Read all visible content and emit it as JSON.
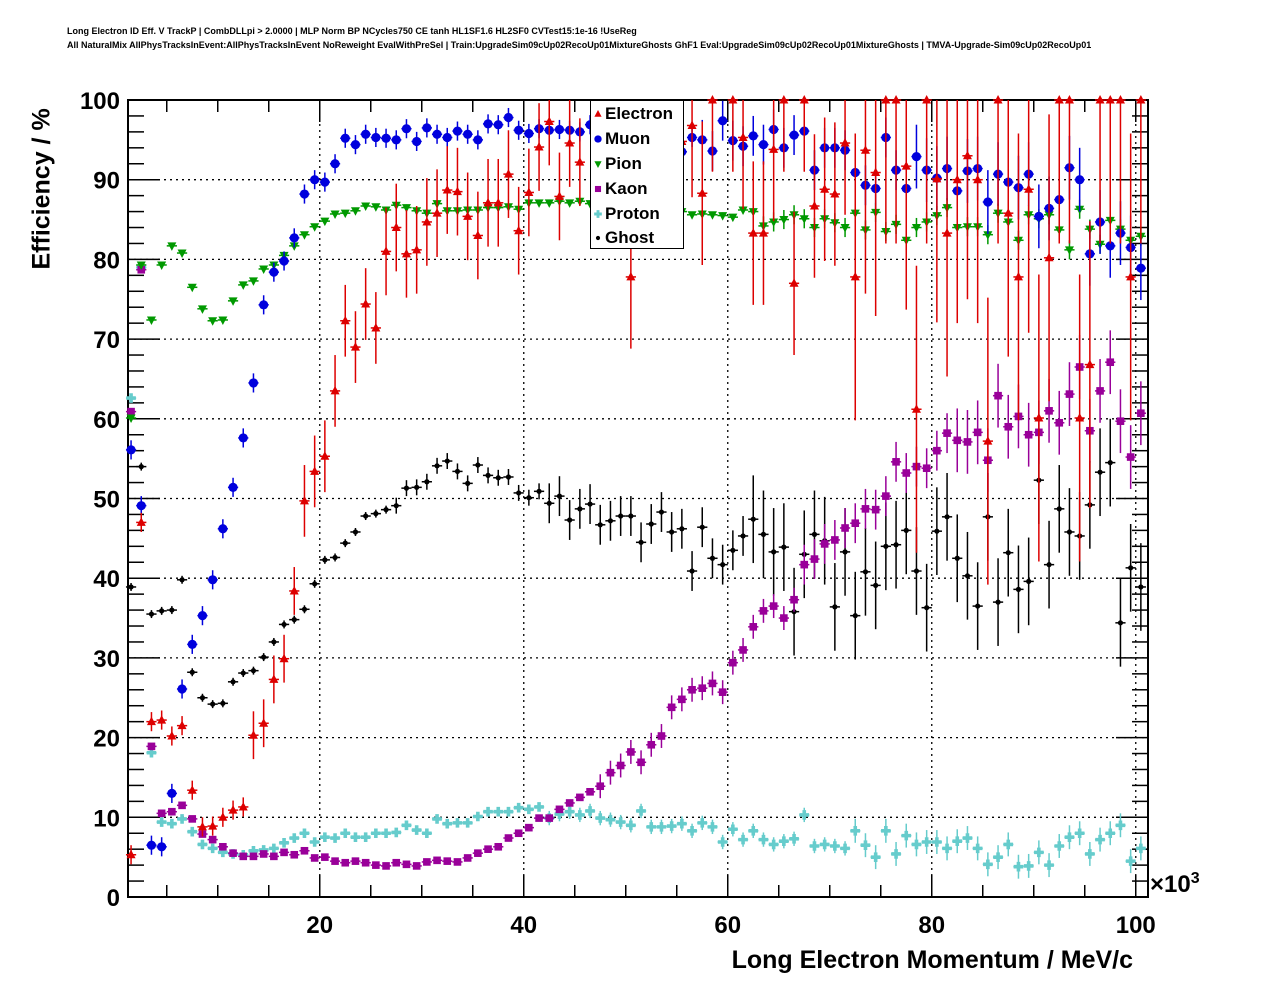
{
  "header": {
    "title_line1": "Long Electron ID Eff. V TrackP | CombDLLpi > 2.0000 | MLP Norm BP NCycles750 CE tanh HL1SF1.6 HL2SF0 CVTest15:1e-16 !UseReg",
    "title_line2": "All NaturalMix AllPhysTracksInEvent:AllPhysTracksInEvent NoReweight EvalWithPreSel | Train:UpgradeSim09cUp02RecoUp01MixtureGhosts GhF1 Eval:UpgradeSim09cUp02RecoUp01MixtureGhosts | TMVA-Upgrade-Sim09cUp02RecoUp01"
  },
  "chart_data": {
    "type": "scatter",
    "xlabel": "Long Electron Momentum / MeV/c",
    "x_multiplier": "×10",
    "x_multiplier_exp": "3",
    "ylabel": "Efficiency / %",
    "xlim": [
      1.2,
      101.2
    ],
    "ylim": [
      0,
      100
    ],
    "x_ticks": [
      "20",
      "40",
      "60",
      "80",
      "100"
    ],
    "x_tick_values": [
      20,
      40,
      60,
      80,
      100
    ],
    "y_ticks": [
      "0",
      "10",
      "20",
      "30",
      "40",
      "50",
      "60",
      "70",
      "80",
      "90",
      "100"
    ],
    "y_tick_values": [
      0,
      10,
      20,
      30,
      40,
      50,
      60,
      70,
      80,
      90,
      100
    ],
    "grid": true,
    "legend_position": "top-center",
    "bin_center_start": 1.5,
    "bin_width": 1,
    "series": [
      {
        "name": "Electron",
        "color": "#dd0000",
        "marker": "triangle-up",
        "values": [
          5.3,
          47,
          22,
          22.2,
          20.2,
          21.5,
          13.4,
          8.8,
          8.9,
          10,
          10.9,
          11.3,
          20.3,
          21.8,
          27.3,
          29.9,
          38.4,
          49.7,
          53.4,
          55.3,
          63.5,
          72.3,
          69,
          74.4,
          71.4,
          81,
          84,
          80.7,
          81.2,
          84.7,
          85.8,
          88.7,
          88.5,
          85.4,
          83,
          87.1,
          87.1,
          90.7,
          83.6,
          88.4,
          94.1,
          97.3,
          87.9,
          94.6,
          92.2,
          null,
          null,
          null,
          null,
          77.8,
          null,
          null,
          null,
          null,
          94.8,
          96.8,
          88.3,
          100,
          null,
          100,
          95.3,
          83.3,
          83.3,
          93.8,
          100,
          77,
          100,
          86.7,
          88.8,
          88.2,
          94.6,
          77.8,
          93.7,
          90.9,
          100,
          100,
          91.7,
          61.2,
          100,
          90.1,
          83.3,
          90,
          93,
          90,
          57.2,
          100,
          85.8,
          77.8,
          88.8,
          60.1,
          80.2,
          100,
          100,
          60.1,
          66.8,
          100,
          100,
          100,
          77.8,
          100
        ],
        "yerr_by_range": [
          [
            0,
            11,
            1.2
          ],
          [
            12,
            16,
            3
          ],
          [
            17,
            24,
            4.5
          ],
          [
            25,
            48,
            5.5
          ],
          [
            49,
            70,
            9
          ],
          [
            71,
            101,
            18
          ]
        ]
      },
      {
        "name": "Muon",
        "color": "#0000dd",
        "marker": "circle",
        "values": [
          56.1,
          49.1,
          6.5,
          6.3,
          13,
          26.1,
          31.7,
          35.3,
          39.8,
          46.2,
          51.4,
          57.6,
          64.5,
          74.3,
          78.4,
          79.8,
          82.7,
          88.2,
          90,
          89.7,
          92,
          95.2,
          94.4,
          95.7,
          95.3,
          95.2,
          95,
          96.4,
          94.8,
          96.5,
          95.7,
          95.3,
          96.1,
          95.7,
          95,
          97,
          96.9,
          97.8,
          96.2,
          95.8,
          96.4,
          96.2,
          96.3,
          96.2,
          96,
          96.9,
          null,
          null,
          null,
          null,
          null,
          null,
          null,
          null,
          93.5,
          95.3,
          95,
          93.6,
          97.4,
          94.9,
          94.2,
          95.5,
          94.4,
          96.3,
          94,
          95.6,
          96.1,
          91.2,
          94,
          94,
          93.7,
          90.9,
          89.3,
          88.9,
          95.3,
          91.2,
          88.9,
          92.9,
          91.2,
          90.2,
          91.4,
          88.6,
          91.1,
          91.4,
          87.2,
          90.7,
          89.7,
          89,
          90.7,
          85.4,
          86.4,
          87.5,
          91.5,
          90,
          80.7,
          84.7,
          81.7,
          83.3,
          81.5,
          78.9
        ],
        "yerr_by_range": [
          [
            0,
            20,
            1.2
          ],
          [
            21,
            55,
            1.2
          ],
          [
            56,
            75,
            2.5
          ],
          [
            76,
            101,
            4
          ]
        ]
      },
      {
        "name": "Pion",
        "color": "#009900",
        "marker": "triangle-down",
        "values": [
          60.1,
          79.3,
          72.4,
          79.3,
          81.7,
          80.8,
          76.5,
          73.8,
          72.3,
          72.4,
          74.8,
          76.8,
          77.3,
          78.8,
          79.3,
          80.5,
          81.7,
          83.1,
          84.1,
          84.8,
          85.7,
          85.8,
          86.1,
          86.7,
          86.6,
          86.2,
          86.8,
          86.5,
          86.1,
          85.8,
          87,
          86.1,
          86.1,
          86.2,
          86.2,
          86.5,
          86.5,
          86.6,
          86.3,
          87.1,
          87.1,
          87.1,
          87.3,
          87.1,
          87.3,
          87,
          null,
          null,
          null,
          null,
          null,
          null,
          null,
          null,
          86,
          85.6,
          85.7,
          85.6,
          85.5,
          85.3,
          86.2,
          86,
          84.2,
          84.7,
          85,
          85.6,
          85.1,
          84,
          85.1,
          84.6,
          84,
          85.8,
          83.7,
          85.9,
          83.5,
          84.4,
          82.4,
          84,
          84.7,
          85.5,
          86.5,
          84,
          84.1,
          84.1,
          83.1,
          85.8,
          84.7,
          82.4,
          85.6,
          85.1,
          85.6,
          83.7,
          81.2,
          86.3,
          83.8,
          81.9,
          84.9,
          83.8,
          82.4,
          82.9
        ],
        "yerr_by_range": [
          [
            0,
            60,
            0.4
          ],
          [
            61,
            101,
            1.2
          ]
        ]
      },
      {
        "name": "Kaon",
        "color": "#990099",
        "marker": "square",
        "values": [
          60.9,
          78.7,
          18.9,
          10.5,
          10.7,
          11.5,
          9.8,
          7.9,
          7.2,
          6.3,
          5.5,
          5.1,
          5.1,
          5.4,
          5.1,
          5.6,
          5.3,
          5.8,
          4.9,
          5.0,
          4.5,
          4.3,
          4.5,
          4.3,
          4.0,
          3.9,
          4.3,
          4.1,
          3.9,
          4.4,
          4.6,
          4.5,
          4.4,
          4.9,
          5.5,
          6.0,
          6.3,
          7.4,
          8.0,
          8.7,
          9.9,
          9.9,
          11,
          11.8,
          12.5,
          13.2,
          13.9,
          15.6,
          16.5,
          18.2,
          16.9,
          19.1,
          20.2,
          23.8,
          24.8,
          26,
          26.2,
          26.8,
          25.7,
          29.4,
          31,
          33.9,
          35.9,
          36.5,
          35,
          37.3,
          41.7,
          42.4,
          44.3,
          44.8,
          46.3,
          46.9,
          48.7,
          48.6,
          50.3,
          54.6,
          53.2,
          54,
          53.8,
          56,
          58.2,
          57.3,
          57.1,
          58.3,
          54.8,
          62.9,
          59,
          60.3,
          58,
          58.3,
          61,
          59.5,
          63.1,
          66.5,
          58.5,
          63.5,
          67.1,
          59.7,
          55.2,
          60.7
        ],
        "yerr_by_range": [
          [
            0,
            45,
            0.4
          ],
          [
            46,
            65,
            1.5
          ],
          [
            66,
            80,
            2.5
          ],
          [
            81,
            101,
            4
          ]
        ]
      },
      {
        "name": "Proton",
        "color": "#66cccc",
        "marker": "cross",
        "values": [
          62.6,
          79,
          18.1,
          9.4,
          9.2,
          9.8,
          8.2,
          6.6,
          6.1,
          5.6,
          5.4,
          5.3,
          5.8,
          5.9,
          6.1,
          6.8,
          7.4,
          8.0,
          6.9,
          7.5,
          7.4,
          8.0,
          7.5,
          7.5,
          8.0,
          8.0,
          8.1,
          9.0,
          8.4,
          8.0,
          9.8,
          9.2,
          9.3,
          9.3,
          10.1,
          10.7,
          10.7,
          10.7,
          11.2,
          11,
          11.3,
          9.9,
          10.4,
          10.7,
          10.3,
          10.8,
          9.9,
          9.7,
          9.4,
          9,
          10.8,
          8.8,
          8.8,
          8.9,
          9.2,
          8.3,
          9.3,
          8.8,
          6.9,
          8.5,
          7.2,
          8.3,
          7.2,
          6.6,
          7.0,
          7.3,
          10.3,
          6.4,
          6.6,
          6.4,
          6.1,
          8.3,
          6.5,
          5.0,
          8.3,
          5.4,
          7.7,
          6.6,
          6.9,
          6.9,
          6.1,
          7.0,
          7.4,
          6.1,
          4.1,
          5.0,
          6.6,
          3.8,
          3.9,
          5.6,
          4.0,
          6.4,
          7.5,
          8.0,
          5.4,
          7.2,
          8.0,
          9.0,
          4.5,
          6.1
        ],
        "yerr_by_range": [
          [
            0,
            40,
            0.4
          ],
          [
            41,
            70,
            0.9
          ],
          [
            71,
            101,
            1.5
          ]
        ]
      },
      {
        "name": "Ghost",
        "color": "#000000",
        "marker": "dot",
        "values": [
          38.9,
          54,
          35.5,
          35.9,
          36,
          39.8,
          28.2,
          25,
          24.2,
          24.3,
          27,
          28.1,
          28.4,
          30.1,
          32,
          34.2,
          34.8,
          36.1,
          39.3,
          42.3,
          42.6,
          44.4,
          45.8,
          47.8,
          48.1,
          48.6,
          49.1,
          51.3,
          51.4,
          52.1,
          54.1,
          54.7,
          53.4,
          51.9,
          54.2,
          52.9,
          52.6,
          52.7,
          50.7,
          50.1,
          50.9,
          49.4,
          50.3,
          47.3,
          48.7,
          49.3,
          46.7,
          47.2,
          47.8,
          47.8,
          44.5,
          46.8,
          48.3,
          45.8,
          46.2,
          40.9,
          46.4,
          42.5,
          41.7,
          43.5,
          45.3,
          47.4,
          45.5,
          43.3,
          43.9,
          35.8,
          43,
          45.5,
          44.7,
          36.4,
          43.3,
          35.3,
          40.8,
          39.1,
          44,
          44.2,
          46,
          40.9,
          36.3,
          45.9,
          47.7,
          42.5,
          40.3,
          36.5,
          47.7,
          37,
          43.2,
          38.6,
          39.6,
          52.3,
          41.7,
          48.7,
          45.8,
          45.3,
          49.2,
          53.3,
          54.5,
          34.4,
          41.3,
          38.9
        ],
        "yerr_by_range": [
          [
            0,
            25,
            0.5
          ],
          [
            26,
            40,
            1
          ],
          [
            41,
            60,
            2.5
          ],
          [
            61,
            101,
            5.5
          ]
        ]
      }
    ]
  }
}
